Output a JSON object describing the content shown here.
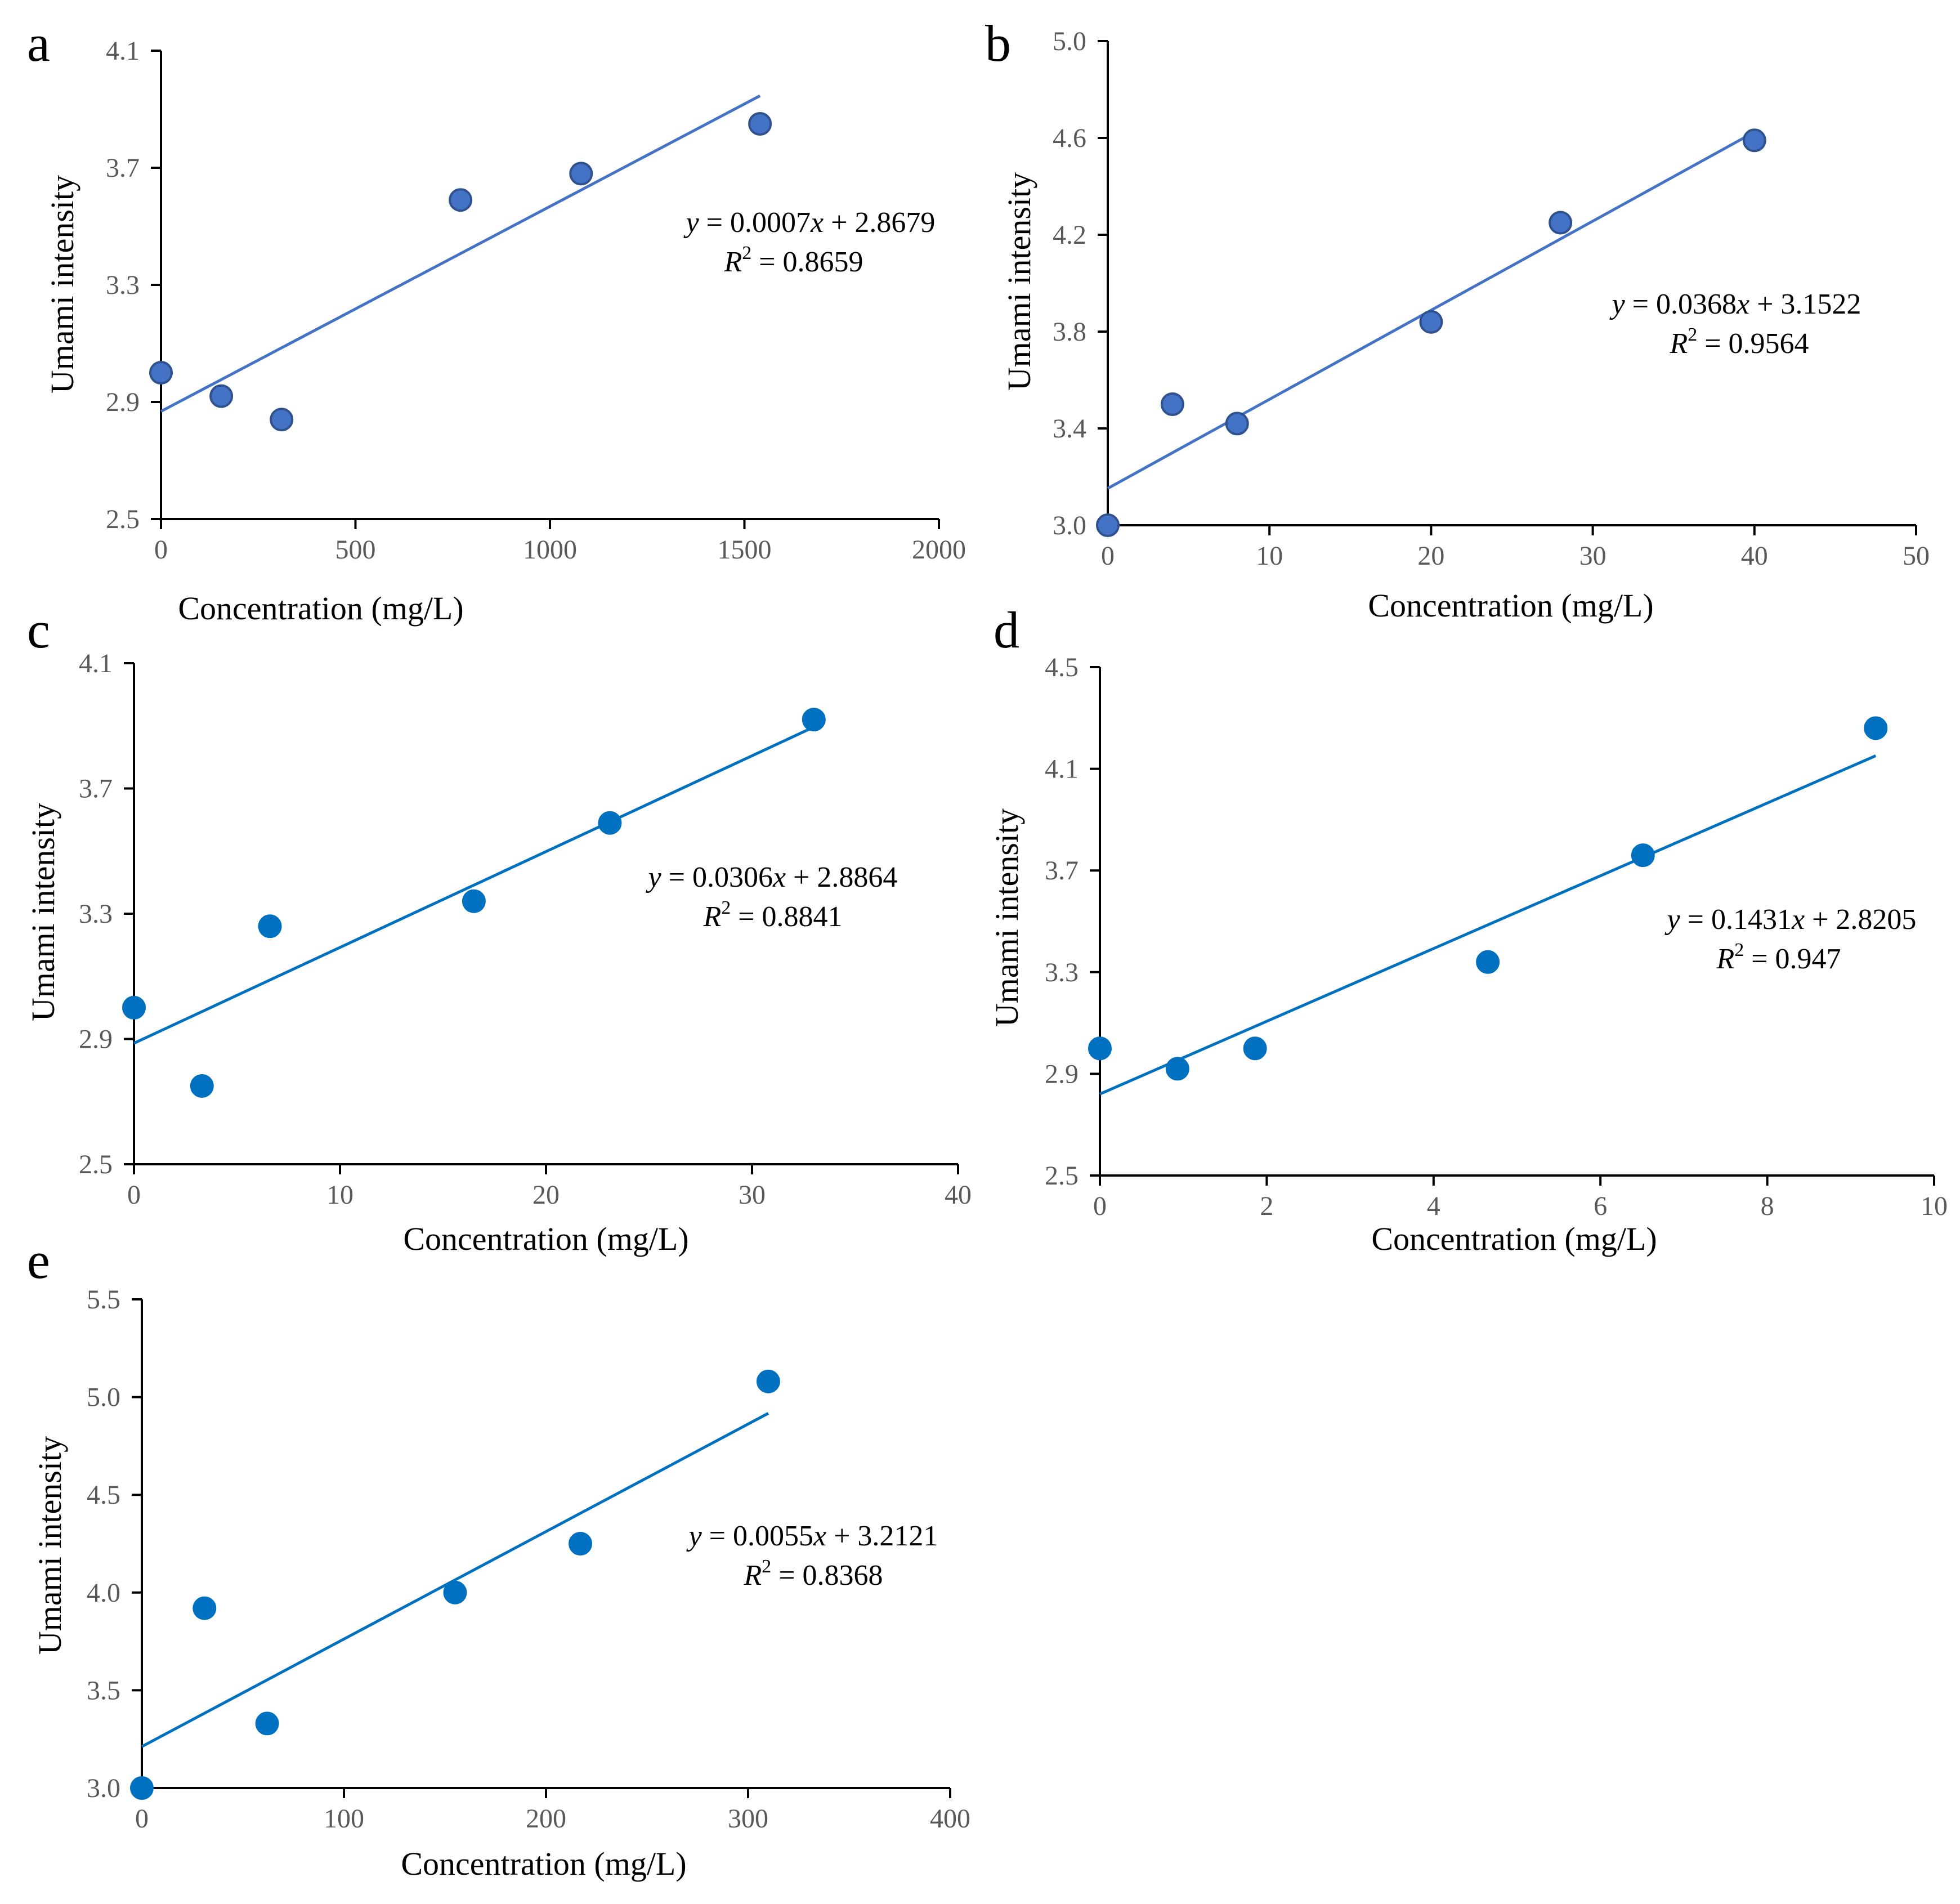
{
  "colors": {
    "dark_marker": "#4472c4",
    "dark_edge": "#2f528f",
    "dark_line": "#4472c4",
    "bright_marker": "#0070c0",
    "bright_edge": "#0070c0",
    "bright_line": "#0070c0"
  },
  "chart_data": [
    {
      "panel": "a",
      "type": "scatter",
      "style": "dark",
      "xlabel": "Concentration (mg/L)",
      "ylabel": "Umami intensity",
      "xlim": [
        0,
        2000
      ],
      "ylim": [
        2.5,
        4.1
      ],
      "xticks": [
        0,
        500,
        1000,
        1500,
        2000
      ],
      "yticks": [
        2.5,
        2.9,
        3.3,
        3.7,
        4.1
      ],
      "ytick_labels": [
        "2.5",
        "2.9",
        "3.3",
        "3.7",
        "4.1"
      ],
      "x": [
        0,
        155,
        310,
        770,
        1080,
        1540
      ],
      "y": [
        3.0,
        2.92,
        2.84,
        3.59,
        3.68,
        3.85
      ],
      "trendline": {
        "slope": 0.0007,
        "intercept": 2.8679,
        "x_range": [
          0,
          1540
        ]
      },
      "equation": {
        "y": "y",
        "mid": " = 0.0007",
        "x": "x",
        "tail": " + 2.8679",
        "r_prefix": "R",
        "r_sup": "2",
        "r_value": " = 0.8659"
      }
    },
    {
      "panel": "b",
      "type": "scatter",
      "style": "dark",
      "xlabel": "Concentration (mg/L)",
      "ylabel": "Umami intensity",
      "xlim": [
        0,
        50
      ],
      "ylim": [
        3.0,
        5.0
      ],
      "xticks": [
        0,
        10,
        20,
        30,
        40,
        50
      ],
      "yticks": [
        3.0,
        3.4,
        3.8,
        4.2,
        4.6,
        5.0
      ],
      "ytick_labels": [
        "3.0",
        "3.4",
        "3.8",
        "4.2",
        "4.6",
        "5.0"
      ],
      "x": [
        0,
        4,
        8,
        20,
        28,
        40
      ],
      "y": [
        3.0,
        3.5,
        3.42,
        3.84,
        4.25,
        4.59
      ],
      "trendline": {
        "slope": 0.0368,
        "intercept": 3.1522,
        "x_range": [
          0,
          40
        ]
      },
      "equation": {
        "y": "y",
        "mid": " = 0.0368",
        "x": "x",
        "tail": " + 3.1522",
        "r_prefix": "R",
        "r_sup": "2",
        "r_value": " = 0.9564"
      }
    },
    {
      "panel": "c",
      "type": "scatter",
      "style": "bright",
      "xlabel": "Concentration (mg/L)",
      "ylabel": "Umami  intensity",
      "xlim": [
        0,
        40
      ],
      "ylim": [
        2.5,
        4.1
      ],
      "xticks": [
        0,
        10,
        20,
        30,
        40
      ],
      "yticks": [
        2.5,
        2.9,
        3.3,
        3.7,
        4.1
      ],
      "ytick_labels": [
        "2.5",
        "2.9",
        "3.3",
        "3.7",
        "4.1"
      ],
      "x": [
        0,
        3.3,
        6.6,
        16.5,
        23.1,
        33
      ],
      "y": [
        3.0,
        2.75,
        3.26,
        3.34,
        3.59,
        3.92
      ],
      "trendline": {
        "slope": 0.0306,
        "intercept": 2.8864,
        "x_range": [
          0,
          33
        ]
      },
      "equation": {
        "y": "y",
        "mid": " = 0.0306",
        "x": "x",
        "tail": " + 2.8864",
        "r_prefix": "R",
        "r_sup": "2",
        "r_value": " = 0.8841"
      }
    },
    {
      "panel": "d",
      "type": "scatter",
      "style": "bright",
      "xlabel": "Concentration (mg/L)",
      "ylabel": "Umami intensity",
      "xlim": [
        0,
        10
      ],
      "ylim": [
        2.5,
        4.5
      ],
      "xticks": [
        0,
        2,
        4,
        6,
        8,
        10
      ],
      "yticks": [
        2.5,
        2.9,
        3.3,
        3.7,
        4.1,
        4.5
      ],
      "ytick_labels": [
        "2.5",
        "2.9",
        "3.3",
        "3.7",
        "4.1",
        "4.5"
      ],
      "x": [
        0,
        0.93,
        1.86,
        4.65,
        6.51,
        9.3
      ],
      "y": [
        3.0,
        2.92,
        3.0,
        3.34,
        3.76,
        4.26
      ],
      "trendline": {
        "slope": 0.1431,
        "intercept": 2.8205,
        "x_range": [
          0,
          9.3
        ]
      },
      "equation": {
        "y": "y",
        "mid": " = 0.1431",
        "x": "x",
        "tail": " + 2.8205",
        "r_prefix": "R",
        "r_sup": "2",
        "r_value": " = 0.947"
      }
    },
    {
      "panel": "e",
      "type": "scatter",
      "style": "bright",
      "xlabel": "Concentration (mg/L)",
      "ylabel": "Umami intensity",
      "xlim": [
        0,
        400
      ],
      "ylim": [
        3.0,
        5.5
      ],
      "xticks": [
        0,
        100,
        200,
        300,
        400
      ],
      "yticks": [
        3.0,
        3.5,
        4.0,
        4.5,
        5.0,
        5.5
      ],
      "ytick_labels": [
        "3.0",
        "3.5",
        "4.0",
        "4.5",
        "5.0",
        "5.5"
      ],
      "x": [
        0,
        31,
        62,
        155,
        217,
        310
      ],
      "y": [
        3.0,
        3.92,
        3.33,
        4.0,
        4.25,
        5.08
      ],
      "trendline": {
        "slope": 0.0055,
        "intercept": 3.2121,
        "x_range": [
          0,
          310
        ]
      },
      "equation": {
        "y": "y",
        "mid": " = 0.0055",
        "x": "x",
        "tail": " + 3.2121",
        "r_prefix": "R",
        "r_sup": "2",
        "r_value": " = 0.8368"
      }
    }
  ]
}
